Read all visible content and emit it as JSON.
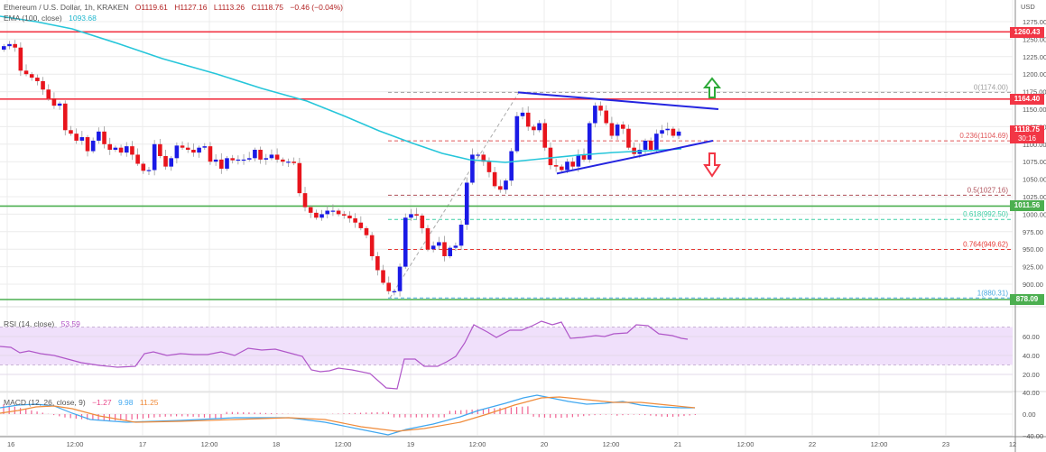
{
  "header": {
    "symbol": "Ethereum / U.S. Dollar, 1h, KRAKEN",
    "open": "O1119.61",
    "high": "H1127.16",
    "low": "L1113.26",
    "close": "C1118.75",
    "change": "−0.46 (−0.04%)",
    "ema_label": "EMA (100, close)",
    "ema_value": "1093.68"
  },
  "price_axis": {
    "currency": "USD",
    "ticks": [
      "1275.00",
      "1250.00",
      "1225.00",
      "1200.00",
      "1175.00",
      "1150.00",
      "1125.00",
      "1100.00",
      "1075.00",
      "1050.00",
      "1025.00",
      "1000.00",
      "975.00",
      "950.00",
      "925.00",
      "900.00"
    ],
    "tags": {
      "resistance_1": "1260.43",
      "resistance_2": "1164.40",
      "last_price": "1118.75",
      "countdown": "30:16",
      "support_1": "1011.56",
      "support_2": "878.09"
    }
  },
  "fib_levels": [
    {
      "label": "0(1174.00)",
      "value": 1174.0,
      "color": "#9e9e9e"
    },
    {
      "label": "0.236(1104.69)",
      "value": 1104.69,
      "color": "#e0575a"
    },
    {
      "label": "0.5(1027.16)",
      "value": 1027.16,
      "color": "#b0515a"
    },
    {
      "label": "0.618(992.50)",
      "value": 992.5,
      "color": "#3fcfa5"
    },
    {
      "label": "0.764(949.62)",
      "value": 949.62,
      "color": "#e53935"
    },
    {
      "label": "1(880.31)",
      "value": 880.31,
      "color": "#4aa8e0"
    }
  ],
  "rsi": {
    "label": "RSI (14, close)",
    "value": "53.59",
    "ticks": [
      "60.00",
      "40.00",
      "20.00"
    ]
  },
  "macd": {
    "label": "MACD (12, 26, close, 9)",
    "hist": "−1.27",
    "macd": "9.98",
    "signal": "11.25",
    "ticks": [
      "40.00",
      "0.00",
      "−40.00"
    ]
  },
  "time_axis": {
    "labels": [
      "16",
      "12:00",
      "17",
      "12:00",
      "18",
      "12:00",
      "19",
      "12:00",
      "20",
      "12:00",
      "21",
      "12:00",
      "22",
      "12:00",
      "23",
      "12"
    ]
  },
  "colors": {
    "up": "#1a1ae6",
    "down": "#e8141c",
    "ema": "#26c6da",
    "resistance": "#f23645",
    "support": "#4caf50",
    "trendline": "#2424e0",
    "rsi_band": "#f0e0fb",
    "rsi_line": "#b057c9"
  },
  "chart_data": {
    "type": "candlestick",
    "title": "Ethereum / U.S. Dollar, 1h, KRAKEN",
    "ylabel": "USD",
    "ylim": [
      870,
      1285
    ],
    "x_labels": [
      "16",
      "12:00",
      "17",
      "12:00",
      "18",
      "12:00",
      "19",
      "12:00",
      "20",
      "12:00",
      "21",
      "12:00",
      "22",
      "12:00",
      "23"
    ],
    "last_ohlc": {
      "open": 1119.61,
      "high": 1127.16,
      "low": 1113.26,
      "close": 1118.75,
      "change": -0.46,
      "change_pct": -0.04
    },
    "ema_100": 1093.68,
    "horizontal_levels": {
      "resistance": [
        1260.43,
        1164.4
      ],
      "support": [
        1011.56,
        878.09
      ]
    },
    "fibonacci": {
      "0": 1174.0,
      "0.236": 1104.69,
      "0.5": 1027.16,
      "0.618": 992.5,
      "0.764": 949.62,
      "1": 880.31
    },
    "triangle": {
      "upper_from": 1174,
      "upper_to": 1150,
      "lower_from": 1058,
      "lower_to": 1105
    },
    "candles_close_approx": [
      1240,
      1243,
      1238,
      1205,
      1200,
      1195,
      1190,
      1178,
      1165,
      1155,
      1158,
      1120,
      1115,
      1105,
      1110,
      1090,
      1105,
      1118,
      1100,
      1092,
      1095,
      1088,
      1097,
      1085,
      1072,
      1062,
      1063,
      1100,
      1083,
      1068,
      1080,
      1098,
      1095,
      1092,
      1088,
      1095,
      1097,
      1075,
      1078,
      1065,
      1080,
      1077,
      1078,
      1078,
      1080,
      1092,
      1078,
      1080,
      1085,
      1078,
      1075,
      1075,
      1073,
      1030,
      1010,
      1002,
      995,
      1000,
      1005,
      1005,
      1000,
      998,
      994,
      988,
      980,
      970,
      940,
      920,
      902,
      890,
      890,
      925,
      995,
      1000,
      998,
      980,
      950,
      955,
      960,
      940,
      952,
      955,
      985,
      1045,
      1085,
      1085,
      1075,
      1060,
      1040,
      1035,
      1048,
      1090,
      1140,
      1145,
      1125,
      1120,
      1130,
      1095,
      1070,
      1068,
      1063,
      1075,
      1068,
      1085,
      1078,
      1130,
      1155,
      1148,
      1130,
      1112,
      1128,
      1122,
      1095,
      1086,
      1092,
      1105,
      1092,
      1115,
      1120,
      1122,
      1112,
      1118
    ],
    "rsi": {
      "value": 53.59,
      "overbought": 70,
      "oversold": 30
    },
    "macd": {
      "macd": 9.98,
      "signal": 11.25,
      "histogram": -1.27
    }
  }
}
